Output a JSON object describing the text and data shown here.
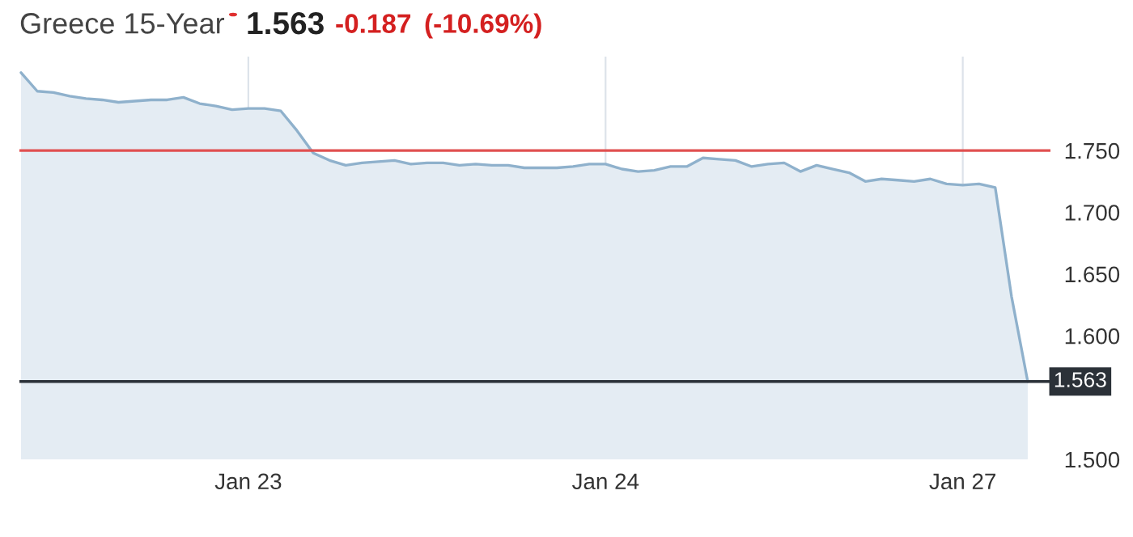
{
  "chart_data": {
    "type": "area",
    "title": "Greece 15-Year",
    "annotations": [
      "1.563",
      "-0.187",
      "(-10.69%)"
    ],
    "categories": [
      null,
      null,
      null,
      null,
      null,
      null,
      null,
      null,
      null,
      null,
      null,
      null,
      null,
      null,
      "Jan 23",
      null,
      null,
      null,
      null,
      null,
      null,
      null,
      null,
      null,
      null,
      null,
      null,
      null,
      null,
      null,
      null,
      null,
      null,
      null,
      null,
      null,
      "Jan 24",
      null,
      null,
      null,
      null,
      null,
      null,
      null,
      null,
      null,
      null,
      null,
      null,
      null,
      null,
      null,
      null,
      null,
      null,
      null,
      null,
      null,
      "Jan 27",
      null,
      null,
      null,
      null
    ],
    "series": [
      {
        "color": "#8fb1cc",
        "values": [
          1.813,
          1.798,
          1.797,
          1.794,
          1.792,
          1.791,
          1.789,
          1.79,
          1.791,
          1.791,
          1.793,
          1.788,
          1.786,
          1.783,
          1.784,
          1.784,
          1.782,
          1.766,
          1.748,
          1.742,
          1.738,
          1.74,
          1.741,
          1.742,
          1.739,
          1.74,
          1.74,
          1.738,
          1.739,
          1.738,
          1.738,
          1.736,
          1.736,
          1.736,
          1.737,
          1.739,
          1.739,
          1.735,
          1.733,
          1.734,
          1.737,
          1.737,
          1.744,
          1.743,
          1.742,
          1.737,
          1.739,
          1.74,
          1.733,
          1.738,
          1.735,
          1.732,
          1.725,
          1.727,
          1.726,
          1.725,
          1.727,
          1.723,
          1.722,
          1.723,
          1.72,
          1.632,
          1.563
        ]
      }
    ],
    "ylim": [
      1.5,
      1.826
    ],
    "yticks": [
      {
        "value": 1.5,
        "label": "1.500"
      },
      {
        "value": 1.6,
        "label": "1.600"
      },
      {
        "value": 1.65,
        "label": "1.650"
      },
      {
        "value": 1.7,
        "label": "1.700"
      },
      {
        "value": 1.75,
        "label": "1.750"
      }
    ],
    "ref_lines": [
      {
        "axis": "y",
        "value": 1.75,
        "label": null,
        "color": "#e05050"
      },
      {
        "axis": "y",
        "value": 1.563,
        "label": "1.563",
        "color": "#2b3138"
      }
    ],
    "grid": "x"
  }
}
